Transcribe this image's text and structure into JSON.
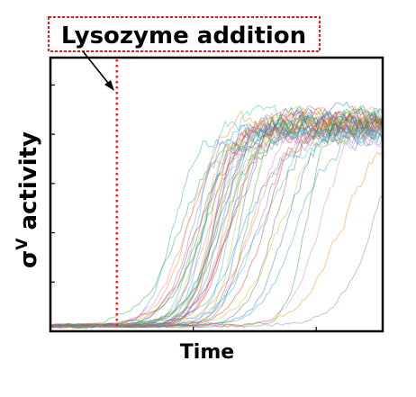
{
  "chart_data": {
    "type": "line",
    "title": "",
    "xlabel": "Time",
    "ylabel_main": "σ",
    "ylabel_sup": "V",
    "ylabel_rest": " activity",
    "xlim": [
      0,
      10
    ],
    "ylim": [
      0,
      1
    ],
    "x_ticks": [
      4.3,
      8.0
    ],
    "y_ticks": [
      0.18,
      0.36,
      0.54,
      0.72,
      0.9
    ],
    "grid": false,
    "legend": "none",
    "annotation": {
      "text": "Lysozyme addition",
      "x": 2.0,
      "y": 0.88
    },
    "event_x": 2.0,
    "series_note": "Many stochastic single-cell traces; each sigmoidal rise from ~0.02 baseline to ~0.75 plateau after lysozyme addition.",
    "trace_onsets": [
      2.6,
      2.8,
      3.0,
      3.1,
      3.2,
      3.3,
      3.35,
      3.4,
      3.45,
      3.5,
      3.55,
      3.6,
      3.65,
      3.7,
      3.75,
      3.8,
      3.85,
      3.9,
      3.95,
      4.0,
      4.05,
      4.1,
      4.15,
      4.2,
      4.25,
      4.3,
      4.35,
      4.4,
      4.5,
      4.6,
      4.7,
      4.8,
      4.9,
      5.0,
      5.1,
      5.2,
      5.4,
      5.6,
      5.8,
      6.0,
      6.3,
      6.6,
      7.0,
      7.6,
      8.6
    ],
    "plateau": 0.75,
    "baseline": 0.02,
    "colors": [
      "#1f9bd6",
      "#2ca02c",
      "#e377c2",
      "#ff7f0e",
      "#9467bd",
      "#17becf",
      "#d62728",
      "#8c564b",
      "#bcbd22",
      "#1f77b4"
    ]
  }
}
